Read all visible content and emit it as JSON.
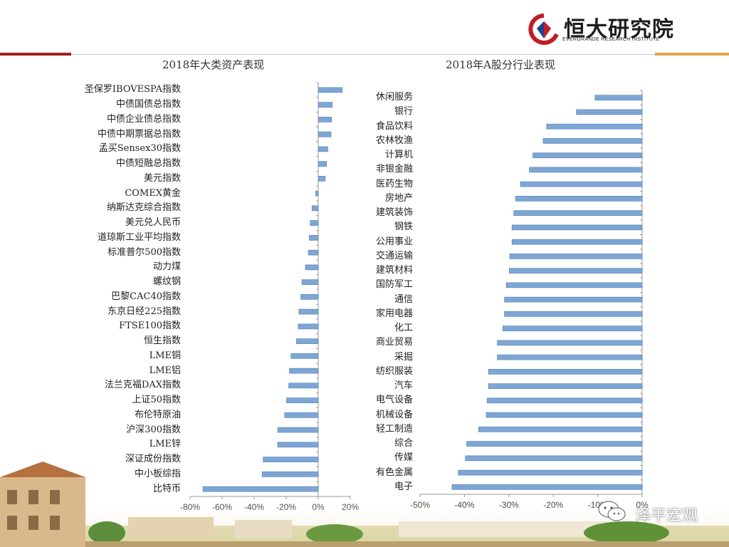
{
  "brand": {
    "name_cn": "恒大研究院",
    "name_en": "EVERGRANDE RESEARCH INSTITUTE"
  },
  "watermark": "泽平宏观",
  "colors": {
    "bar": "#7ea6d4",
    "bar_edge": "#4d7fb8",
    "axis": "#999999",
    "accent_red": "#a31f1a",
    "accent_gold": "#e2a64b"
  },
  "chart_data": [
    {
      "type": "bar",
      "orientation": "horizontal",
      "title": "2018年大类资产表现",
      "categories": [
        "圣保罗IBOVESPA指数",
        "中债国债总指数",
        "中债企业债总指数",
        "中债中期票据总指数",
        "孟买Sensex30指数",
        "中债短融总指数",
        "美元指数",
        "COMEX黄金",
        "纳斯达克综合指数",
        "美元兑人民币",
        "道琼斯工业平均指数",
        "标准普尔500指数",
        "动力煤",
        "螺纹钢",
        "巴黎CAC40指数",
        "东京日经225指数",
        "FTSE100指数",
        "恒生指数",
        "LME铜",
        "LME铝",
        "法兰克福DAX指数",
        "上证50指数",
        "布伦特原油",
        "沪深300指数",
        "LME锌",
        "深证成份指数",
        "中小板综指",
        "比特币"
      ],
      "values": [
        15.0,
        8.8,
        8.3,
        8.0,
        6.0,
        5.2,
        4.4,
        -1.6,
        -3.9,
        -5.0,
        -5.6,
        -6.2,
        -8.0,
        -10.2,
        -10.9,
        -12.1,
        -12.5,
        -13.6,
        -17.0,
        -18.0,
        -18.4,
        -19.8,
        -21.0,
        -25.3,
        -25.3,
        -34.4,
        -35.0,
        -72.0
      ],
      "xlim": [
        -80,
        20
      ],
      "xticks": [
        "-80%",
        "-60%",
        "-40%",
        "-20%",
        "0%",
        "20%"
      ],
      "grid": false
    },
    {
      "type": "bar",
      "orientation": "horizontal",
      "title": "2018年A股分行业表现",
      "categories": [
        "休闲服务",
        "银行",
        "食品饮料",
        "农林牧渔",
        "计算机",
        "非银金融",
        "医药生物",
        "房地产",
        "建筑装饰",
        "钢铁",
        "公用事业",
        "交通运输",
        "建筑材料",
        "国防军工",
        "通信",
        "家用电器",
        "化工",
        "商业贸易",
        "采掘",
        "纺织服装",
        "汽车",
        "电气设备",
        "机械设备",
        "轻工制造",
        "综合",
        "传媒",
        "有色金属",
        "电子"
      ],
      "values": [
        -10.6,
        -14.8,
        -21.5,
        -22.3,
        -24.6,
        -25.4,
        -27.4,
        -28.5,
        -28.9,
        -29.3,
        -29.3,
        -29.8,
        -29.9,
        -30.6,
        -31.0,
        -31.0,
        -31.4,
        -32.6,
        -32.6,
        -34.6,
        -34.6,
        -34.9,
        -35.1,
        -36.8,
        -39.5,
        -39.8,
        -41.4,
        -42.8
      ],
      "xlim": [
        -50,
        0
      ],
      "xticks": [
        "-50%",
        "-40%",
        "-30%",
        "-20%",
        "-10%",
        "0%"
      ],
      "grid": false
    }
  ]
}
